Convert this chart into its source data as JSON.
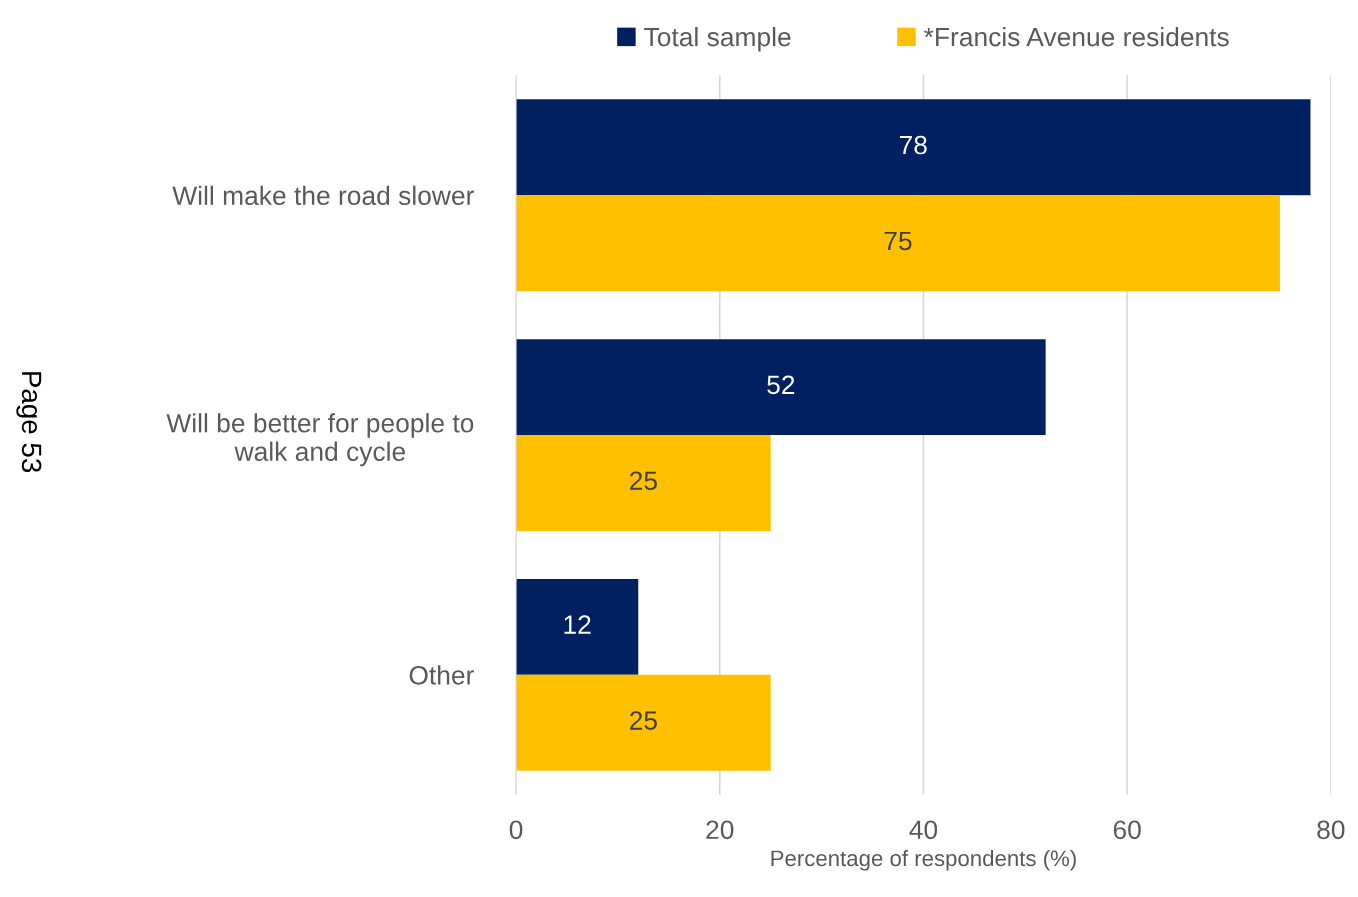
{
  "chart_data": {
    "type": "bar",
    "orientation": "horizontal",
    "categories": [
      "Will make the road slower",
      "Will be better for people to\nwalk and cycle",
      "Other"
    ],
    "series": [
      {
        "name": "Total sample",
        "color": "#002060",
        "values": [
          78,
          52,
          12
        ]
      },
      {
        "name": "*Francis Avenue residents",
        "color": "#ffc000",
        "values": [
          75,
          25,
          25
        ]
      }
    ],
    "xlabel": "Percentage of respondents (%)",
    "xlim": [
      0,
      80
    ],
    "xticks": [
      0,
      20,
      40,
      60,
      80
    ],
    "grid": "x",
    "legend": "top",
    "data_labels": true,
    "annotations": [
      "Page 53"
    ]
  }
}
